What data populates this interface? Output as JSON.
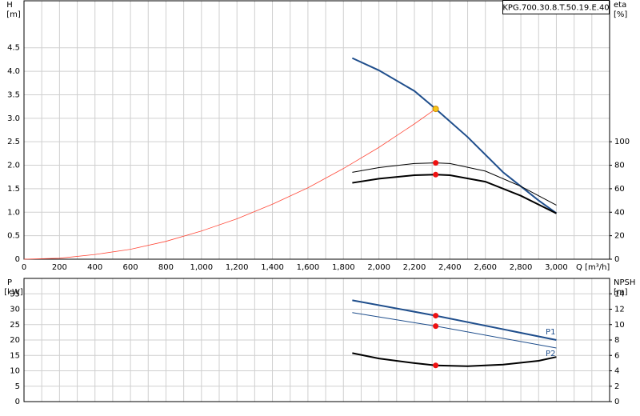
{
  "title": "KPG.700.30.8.T.50.19.E.40",
  "chart_data": [
    {
      "type": "line",
      "xlabel": "Q [m³/h]",
      "ylabel": "H",
      "yunit": "[m]",
      "y2label": "eta",
      "y2unit": "[%]",
      "xlim": [
        0,
        3300
      ],
      "ylim": [
        0,
        5.5
      ],
      "y2lim": [
        0,
        220
      ],
      "xticks": [
        0,
        200,
        400,
        600,
        800,
        {
          "value": 1000,
          "label": "1,000"
        },
        {
          "value": 1200,
          "label": "1,200"
        },
        {
          "value": 1400,
          "label": "1,400"
        },
        {
          "value": 1600,
          "label": "1,600"
        },
        {
          "value": 1800,
          "label": "1,800"
        },
        {
          "value": 2000,
          "label": "2,000"
        },
        {
          "value": 2200,
          "label": "2,200"
        },
        {
          "value": 2400,
          "label": "2,400"
        },
        {
          "value": 2600,
          "label": "2,600"
        },
        {
          "value": 2800,
          "label": "2,800"
        },
        {
          "value": 3000,
          "label": "3,000"
        }
      ],
      "xgrid": [
        0,
        100,
        200,
        300,
        400,
        500,
        600,
        700,
        800,
        900,
        1000,
        1100,
        1200,
        1300,
        1400,
        1500,
        1600,
        1700,
        1800,
        1900,
        2000,
        2100,
        2200,
        2300,
        2400,
        2500,
        2600,
        2700,
        2800,
        2900,
        3000,
        3100,
        3200,
        3300
      ],
      "yticks": [
        0,
        0.5,
        {
          "value": 1,
          "label": "1.0"
        },
        1.5,
        {
          "value": 2,
          "label": "2.0"
        },
        2.5,
        {
          "value": 3,
          "label": "3.0"
        },
        3.5,
        {
          "value": 4,
          "label": "4.0"
        },
        4.5
      ],
      "y2ticks": [
        0,
        20,
        40,
        60,
        80,
        100
      ],
      "series": [
        {
          "color": "#ff4a3a",
          "width": 0.8,
          "x": [
            0,
            200,
            400,
            600,
            800,
            1000,
            1200,
            1400,
            1600,
            1800,
            2000,
            2200,
            2320
          ],
          "values": [
            0,
            0.02,
            0.1,
            0.21,
            0.38,
            0.6,
            0.86,
            1.17,
            1.52,
            1.93,
            2.38,
            2.88,
            3.2
          ]
        },
        {
          "color": "#1f4e8c",
          "width": 2,
          "x": [
            1850,
            2000,
            2200,
            2320,
            2500,
            2700,
            2900,
            3000
          ],
          "values": [
            4.28,
            4.02,
            3.58,
            3.2,
            2.6,
            1.85,
            1.25,
            0.98
          ]
        },
        {
          "color": "#000000",
          "width": 1,
          "axis": "y2",
          "x": [
            1850,
            2000,
            2200,
            2320,
            2400,
            2600,
            2800,
            3000
          ],
          "values": [
            74,
            78,
            81.5,
            82,
            81.5,
            75,
            62,
            46
          ]
        },
        {
          "color": "#000000",
          "width": 2,
          "axis": "y2",
          "x": [
            1850,
            2000,
            2200,
            2320,
            2400,
            2600,
            2800,
            3000
          ],
          "values": [
            65,
            68.5,
            71.5,
            72,
            71.5,
            66,
            54,
            39
          ]
        },
        {
          "mode": "markers",
          "color": "#f5c518",
          "x": [
            2320
          ],
          "values": [
            3.2
          ]
        },
        {
          "mode": "markers",
          "color": "#ee1111",
          "axis": "y2",
          "x": [
            2320,
            2320
          ],
          "values": [
            82,
            72
          ]
        }
      ]
    },
    {
      "type": "line",
      "ylabel": "P",
      "yunit": "[kW]",
      "y2label": "NPSH",
      "y2unit": "[m]",
      "xlim": [
        0,
        3300
      ],
      "ylim": [
        0,
        40
      ],
      "y2lim": [
        0,
        16
      ],
      "xgrid": [
        0,
        100,
        200,
        300,
        400,
        500,
        600,
        700,
        800,
        900,
        1000,
        1100,
        1200,
        1300,
        1400,
        1500,
        1600,
        1700,
        1800,
        1900,
        2000,
        2100,
        2200,
        2300,
        2400,
        2500,
        2600,
        2700,
        2800,
        2900,
        3000,
        3100,
        3200,
        3300
      ],
      "yticks": [
        0,
        5,
        10,
        15,
        20,
        25,
        30,
        35
      ],
      "y2ticks": [
        0,
        2,
        4,
        6,
        8,
        10,
        12,
        14
      ],
      "series": [
        {
          "name": "P1",
          "color": "#1f4e8c",
          "width": 2,
          "x": [
            1850,
            2320,
            3000
          ],
          "values": [
            32.9,
            27.9,
            20
          ]
        },
        {
          "name": "P2",
          "color": "#1f4e8c",
          "width": 1,
          "x": [
            1850,
            2320,
            3000
          ],
          "values": [
            28.9,
            24.5,
            17.4
          ]
        },
        {
          "color": "#000000",
          "width": 2,
          "axis": "y2",
          "x": [
            1850,
            2000,
            2200,
            2320,
            2500,
            2700,
            2900,
            3000
          ],
          "values": [
            6.3,
            5.6,
            5,
            4.7,
            4.6,
            4.8,
            5.3,
            5.8
          ]
        },
        {
          "mode": "markers",
          "color": "#ee1111",
          "x": [
            2320,
            2320
          ],
          "values": [
            27.9,
            24.5
          ]
        },
        {
          "mode": "markers",
          "color": "#ee1111",
          "axis": "y2",
          "x": [
            2320
          ],
          "values": [
            4.7
          ]
        }
      ]
    }
  ]
}
